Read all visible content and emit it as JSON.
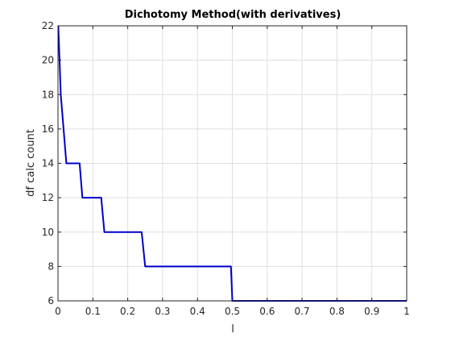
{
  "chart_data": {
    "type": "line",
    "title": "Dichotomy Method(with derivatives)",
    "xlabel": "l",
    "ylabel": "df calc count",
    "xlim": [
      0,
      1
    ],
    "ylim": [
      6,
      22
    ],
    "xticks": [
      0,
      0.1,
      0.2,
      0.3,
      0.4,
      0.5,
      0.6,
      0.7,
      0.8,
      0.9,
      1
    ],
    "yticks": [
      6,
      8,
      10,
      12,
      14,
      16,
      18,
      20,
      22
    ],
    "xtick_labels": [
      "0",
      "0.1",
      "0.2",
      "0.3",
      "0.4",
      "0.5",
      "0.6",
      "0.7",
      "0.8",
      "0.9",
      "1"
    ],
    "ytick_labels": [
      "6",
      "8",
      "10",
      "12",
      "14",
      "16",
      "18",
      "20",
      "22"
    ],
    "grid": true,
    "series": [
      {
        "color": "#0000cc",
        "x": [
          0.001,
          0.008,
          0.016,
          0.024,
          0.032,
          0.062,
          0.07,
          0.124,
          0.133,
          0.24,
          0.25,
          0.496,
          0.5,
          1.0
        ],
        "y": [
          22,
          18,
          16,
          14,
          14,
          14,
          12,
          12,
          10,
          10,
          8,
          8,
          6,
          6
        ]
      }
    ]
  }
}
